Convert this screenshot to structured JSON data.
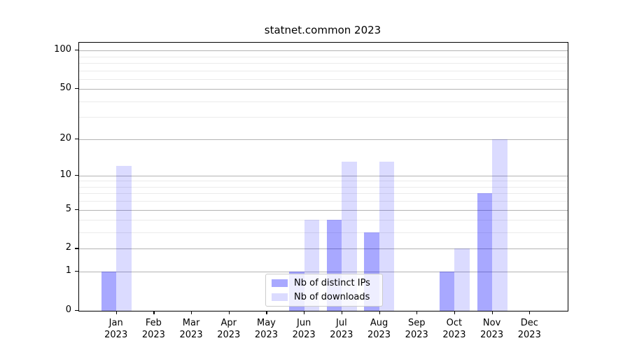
{
  "title": "statnet.common 2023",
  "chart_data": {
    "type": "bar",
    "title": "statnet.common 2023",
    "categories": [
      "Jan 2023",
      "Feb 2023",
      "Mar 2023",
      "Apr 2023",
      "May 2023",
      "Jun 2023",
      "Jul 2023",
      "Aug 2023",
      "Sep 2023",
      "Oct 2023",
      "Nov 2023",
      "Dec 2023"
    ],
    "series": [
      {
        "name": "Nb of distinct IPs",
        "color": "rgba(0,0,255,0.34)",
        "values": [
          1,
          0,
          0,
          0,
          0,
          1,
          4,
          3,
          0,
          1,
          7,
          0
        ]
      },
      {
        "name": "Nb of downloads",
        "color": "rgba(0,0,255,0.14)",
        "values": [
          12,
          0,
          0,
          0,
          0,
          4,
          13,
          13,
          0,
          2,
          20,
          0
        ]
      }
    ],
    "yscale": "log1p",
    "ylim": [
      0,
      115
    ],
    "yticks_major": [
      0,
      1,
      2,
      5,
      10,
      20,
      50,
      100
    ],
    "yticks_minor": [
      3,
      4,
      6,
      7,
      8,
      9,
      30,
      40,
      60,
      70,
      80,
      90
    ],
    "grid": true,
    "legend_position": "lower center"
  },
  "colors": {
    "grid_major": "#b3b3b3",
    "grid_minor": "#ebebeb",
    "axis": "#000000"
  }
}
